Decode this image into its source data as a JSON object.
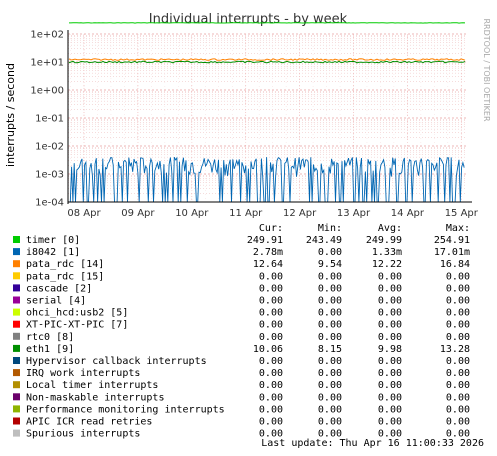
{
  "chart_data": {
    "type": "line",
    "title": "Individual interrupts - by week",
    "ylabel": "interrupts / second",
    "yscale": "log",
    "ylim": [
      0.0001,
      100
    ],
    "y_ticks": [
      "1e-04",
      "1e-03",
      "1e-02",
      "1e-01",
      "1e+00",
      "1e+01",
      "1e+02"
    ],
    "x_ticks": [
      "08 Apr",
      "09 Apr",
      "10 Apr",
      "11 Apr",
      "12 Apr",
      "13 Apr",
      "14 Apr",
      "15 Apr"
    ],
    "watermark": "RRDTOOL / TOBI OETIKER",
    "legend_headers": [
      "Cur:",
      "Min:",
      "Avg:",
      "Max:"
    ],
    "series": [
      {
        "name": "timer [0]",
        "color": "#00cc00",
        "cur": "249.91",
        "min": "243.49",
        "avg": "249.99",
        "max": "254.91",
        "level": 249.99
      },
      {
        "name": "i8042 [1]",
        "color": "#0066b3",
        "cur": "2.78m",
        "min": "0.00",
        "avg": "1.33m",
        "max": "17.01m",
        "level": 0.00133
      },
      {
        "name": "pata_rdc [14]",
        "color": "#ff8000",
        "cur": "12.64",
        "min": "9.54",
        "avg": "12.22",
        "max": "16.84",
        "level": 12.22
      },
      {
        "name": "pata_rdc [15]",
        "color": "#ffcc00",
        "cur": "0.00",
        "min": "0.00",
        "avg": "0.00",
        "max": "0.00",
        "level": 0
      },
      {
        "name": "cascade [2]",
        "color": "#330099",
        "cur": "0.00",
        "min": "0.00",
        "avg": "0.00",
        "max": "0.00",
        "level": 0
      },
      {
        "name": "serial [4]",
        "color": "#990099",
        "cur": "0.00",
        "min": "0.00",
        "avg": "0.00",
        "max": "0.00",
        "level": 0
      },
      {
        "name": "ohci_hcd:usb2 [5]",
        "color": "#ccff00",
        "cur": "0.00",
        "min": "0.00",
        "avg": "0.00",
        "max": "0.00",
        "level": 0
      },
      {
        "name": "XT-PIC-XT-PIC [7]",
        "color": "#ff0000",
        "cur": "0.00",
        "min": "0.00",
        "avg": "0.00",
        "max": "0.00",
        "level": 0
      },
      {
        "name": "rtc0 [8]",
        "color": "#808080",
        "cur": "0.00",
        "min": "0.00",
        "avg": "0.00",
        "max": "0.00",
        "level": 0
      },
      {
        "name": "eth1 [9]",
        "color": "#008f00",
        "cur": "10.06",
        "min": "8.15",
        "avg": "9.98",
        "max": "13.28",
        "level": 9.98
      },
      {
        "name": "Hypervisor callback interrupts",
        "color": "#00487d",
        "cur": "0.00",
        "min": "0.00",
        "avg": "0.00",
        "max": "0.00",
        "level": 0
      },
      {
        "name": "IRQ work interrupts",
        "color": "#b35a00",
        "cur": "0.00",
        "min": "0.00",
        "avg": "0.00",
        "max": "0.00",
        "level": 0
      },
      {
        "name": "Local timer interrupts",
        "color": "#b38f00",
        "cur": "0.00",
        "min": "0.00",
        "avg": "0.00",
        "max": "0.00",
        "level": 0
      },
      {
        "name": "Non-maskable interrupts",
        "color": "#6b006b",
        "cur": "0.00",
        "min": "0.00",
        "avg": "0.00",
        "max": "0.00",
        "level": 0
      },
      {
        "name": "Performance monitoring interrupts",
        "color": "#8fb300",
        "cur": "0.00",
        "min": "0.00",
        "avg": "0.00",
        "max": "0.00",
        "level": 0
      },
      {
        "name": "APIC ICR read retries",
        "color": "#b30000",
        "cur": "0.00",
        "min": "0.00",
        "avg": "0.00",
        "max": "0.00",
        "level": 0
      },
      {
        "name": "Spurious interrupts",
        "color": "#bebebe",
        "cur": "0.00",
        "min": "0.00",
        "avg": "0.00",
        "max": "0.00",
        "level": 0
      }
    ],
    "last_update": "Last update: Thu Apr 16 11:00:33 2026"
  }
}
